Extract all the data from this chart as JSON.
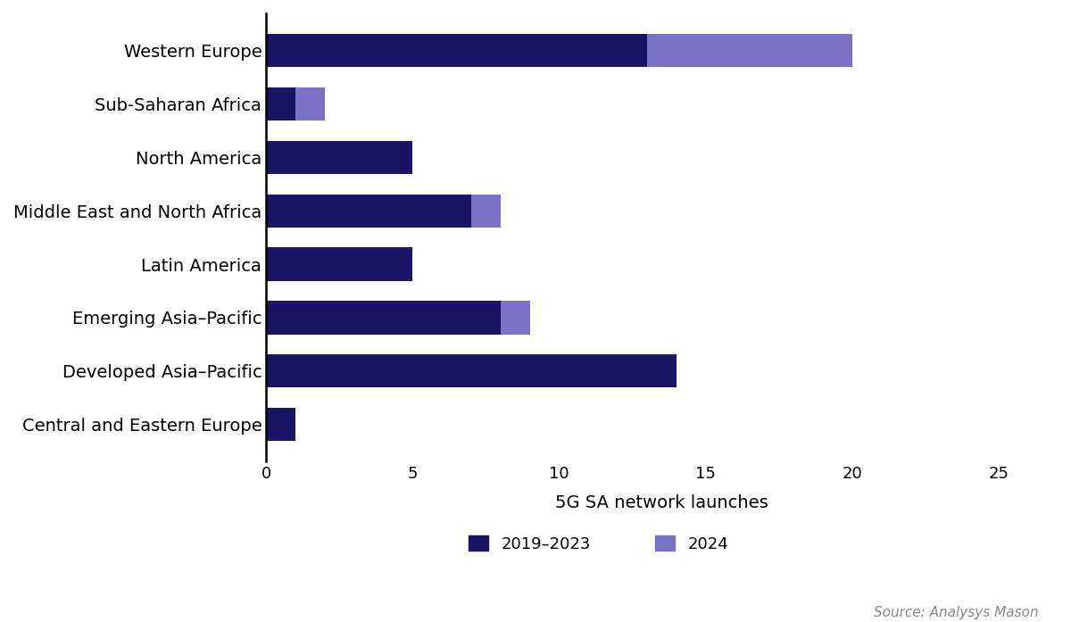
{
  "categories": [
    "Western Europe",
    "Sub-Saharan Africa",
    "North America",
    "Middle East and North Africa",
    "Latin America",
    "Emerging Asia–Pacific",
    "Developed Asia–Pacific",
    "Central and Eastern Europe"
  ],
  "values_2019_2023": [
    13,
    1,
    5,
    7,
    5,
    8,
    14,
    1
  ],
  "values_2024": [
    7,
    1,
    0,
    1,
    0,
    1,
    0,
    0
  ],
  "color_2019_2023": "#1b1464",
  "color_2024": "#7b72c8",
  "xlabel": "5G SA network launches",
  "xlim": [
    0,
    27
  ],
  "xticks": [
    0,
    5,
    10,
    15,
    20,
    25
  ],
  "legend_label_1": "2019–2023",
  "legend_label_2": "2024",
  "source_text": "Source: Analysys Mason",
  "background_color": "#ffffff",
  "bar_height": 0.62,
  "axis_label_fontsize": 14,
  "tick_fontsize": 13,
  "ytick_fontsize": 14,
  "legend_fontsize": 13,
  "source_fontsize": 11
}
